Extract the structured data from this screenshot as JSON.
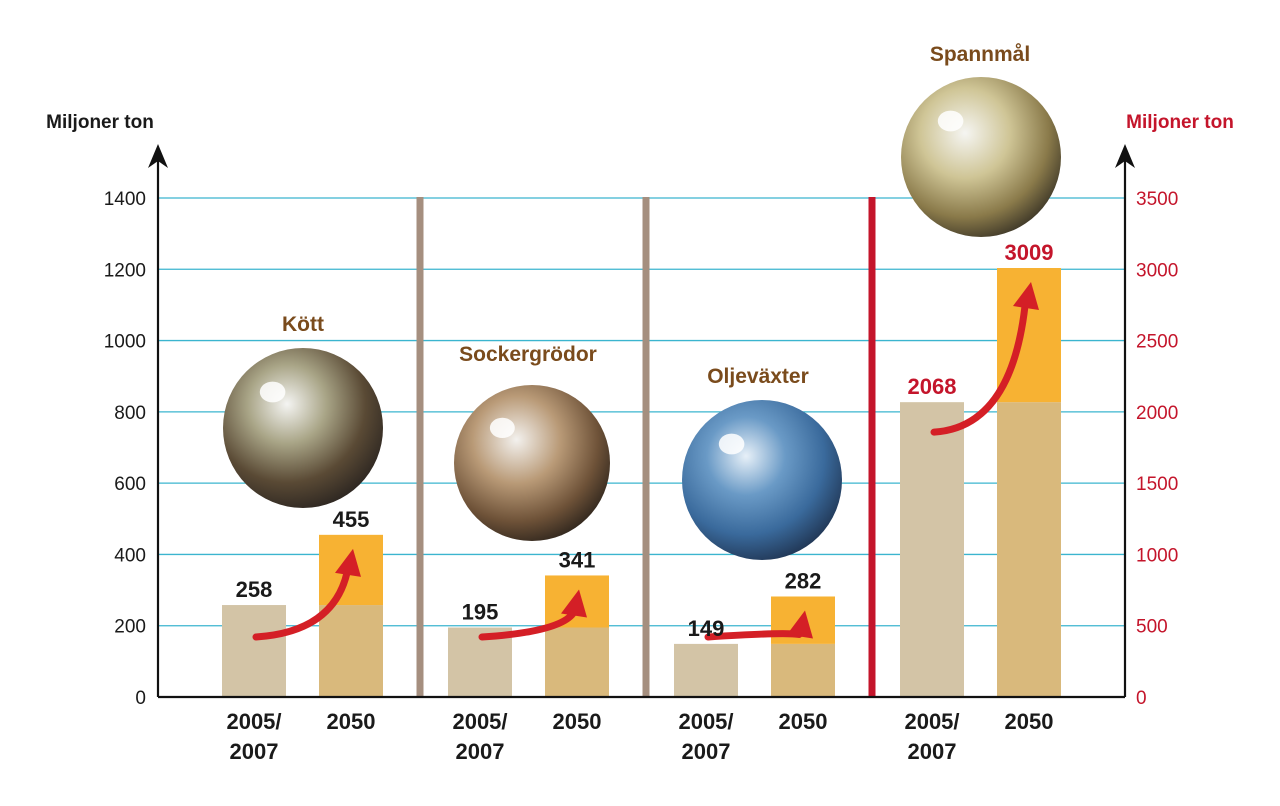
{
  "chart_data": {
    "type": "bar",
    "left_axis": {
      "title": "Miljoner ton",
      "ylim": [
        0,
        1400
      ],
      "ticks": [
        0,
        200,
        400,
        600,
        800,
        1000,
        1200,
        1400
      ]
    },
    "right_axis": {
      "title": "Miljoner ton",
      "ylim": [
        0,
        3500
      ],
      "ticks": [
        0,
        500,
        1000,
        1500,
        2000,
        2500,
        3000,
        3500
      ]
    },
    "period_labels": [
      "2005/\n2007",
      "2050"
    ],
    "groups": [
      {
        "name": "Kött",
        "axis": "left",
        "values": [
          258,
          455
        ],
        "image": "cows-photo"
      },
      {
        "name": "Sockergrödor",
        "axis": "left",
        "values": [
          195,
          341
        ],
        "image": "sugar-beet-photo"
      },
      {
        "name": "Oljeväxter",
        "axis": "left",
        "values": [
          149,
          282
        ],
        "image": "rapeseed-photo"
      },
      {
        "name": "Spannmål",
        "axis": "right",
        "values": [
          2068,
          3009
        ],
        "image": "wheat-photo"
      }
    ],
    "colors": {
      "base_bar": "#d3c4a6",
      "base_bar_2050": "#d9b97c",
      "increase": "#f7b233",
      "grid": "#3bb5cf",
      "separator": "#a58f7f",
      "right_accent": "#c4152b",
      "label_dark": "#1a1a1a",
      "category_title": "#7a4b1c",
      "arrow": "#d41f26"
    }
  }
}
